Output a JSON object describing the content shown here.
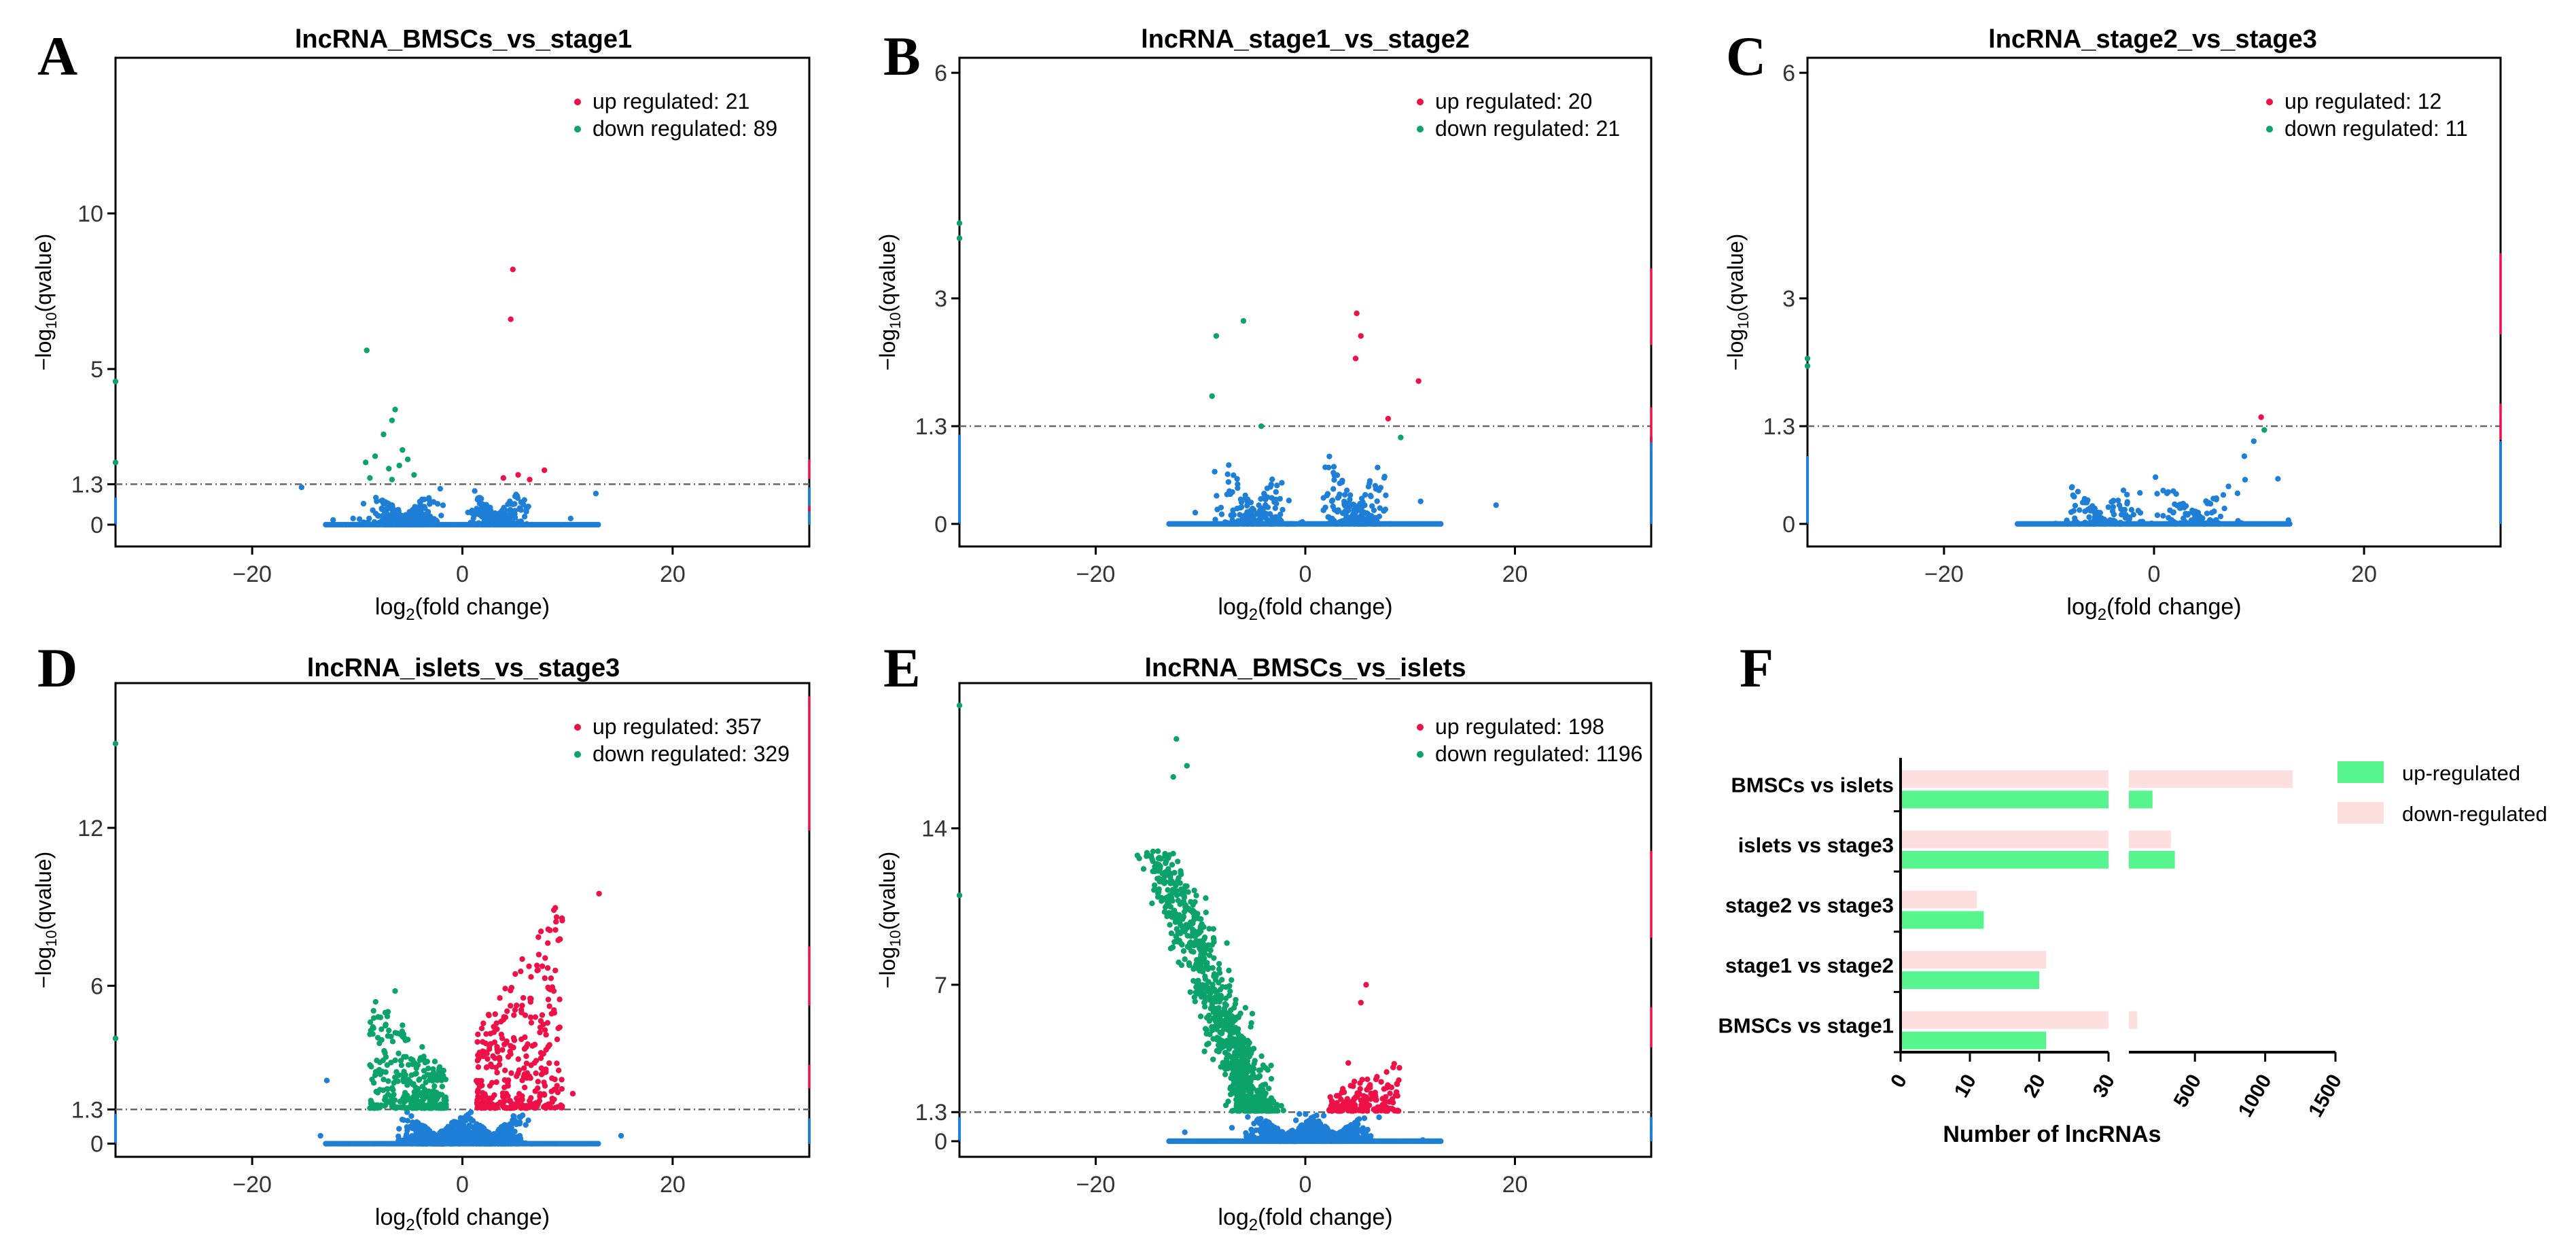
{
  "colors": {
    "up": "#ee1147",
    "down": "#0ca36a",
    "ns": "#1f7fd6",
    "threshold_line": "#666666",
    "axis": "#000000",
    "bar_up": "#56f58e",
    "bar_down": "#fddfe0"
  },
  "chart_data": [
    {
      "panel": "A",
      "type": "scatter",
      "title": "lncRNA_BMSCs_vs_stage1",
      "xlabel_base": "log",
      "xlabel_sub": "2",
      "xlabel_rest": "(fold change)",
      "ylabel_pre": "−log",
      "ylabel_sub": "10",
      "ylabel_rest": "(qvalue)",
      "xlim": [
        -33,
        33
      ],
      "ylim": [
        -0.7,
        15
      ],
      "xticks": [
        -20,
        0,
        20
      ],
      "yticks": [
        0,
        1.3,
        5,
        10
      ],
      "threshold": 1.3,
      "legend": {
        "up_label": "up regulated: 21",
        "down_label": "down regulated: 89"
      },
      "up_points": [
        [
          4.8,
          8.2
        ],
        [
          4.6,
          6.6
        ],
        [
          7.8,
          1.75
        ],
        [
          5.3,
          1.6
        ],
        [
          3.9,
          1.5
        ],
        [
          6.4,
          1.45
        ]
      ],
      "down_points": [
        [
          -9.1,
          5.6
        ],
        [
          -6.4,
          3.7
        ],
        [
          -6.7,
          3.35
        ],
        [
          -7.5,
          2.9
        ],
        [
          -5.7,
          2.4
        ],
        [
          -8.3,
          2.2
        ],
        [
          -5.2,
          2.1
        ],
        [
          -9.2,
          2.0
        ],
        [
          -6.0,
          1.9
        ],
        [
          -7.0,
          1.8
        ],
        [
          -4.6,
          1.6
        ],
        [
          -8.8,
          1.5
        ],
        [
          -6.7,
          1.45
        ],
        [
          -33,
          2.0
        ],
        [
          -33,
          4.6
        ]
      ],
      "ns_extra": [
        [
          -15.3,
          1.2
        ],
        [
          -12.3,
          0.15
        ],
        [
          -10.4,
          0.2
        ],
        [
          10.3,
          0.2
        ],
        [
          12.7,
          1.0
        ]
      ],
      "ns_clusters": [
        {
          "cx": -5.5,
          "spread": 2.7,
          "ymax": 1.2,
          "n": 380
        },
        {
          "cx": 3.3,
          "spread": 2.2,
          "ymax": 1.2,
          "n": 320
        }
      ],
      "edge_up": [
        [
          33,
          2.1
        ],
        [
          33,
          0.6
        ]
      ],
      "edge_ns": true
    },
    {
      "panel": "B",
      "type": "scatter",
      "title": "lncRNA_stage1_vs_stage2",
      "xlabel_base": "log",
      "xlabel_sub": "2",
      "xlabel_rest": "(fold change)",
      "ylabel_pre": "−log",
      "ylabel_sub": "10",
      "ylabel_rest": "(qvalue)",
      "xlim": [
        -33,
        33
      ],
      "ylim": [
        -0.3,
        6.2
      ],
      "xticks": [
        -20,
        0,
        20
      ],
      "yticks": [
        0,
        1.3,
        3,
        6
      ],
      "threshold": 1.3,
      "legend": {
        "up_label": "up regulated: 20",
        "down_label": "down regulated: 21"
      },
      "up_points": [
        [
          4.9,
          2.8
        ],
        [
          5.3,
          2.5
        ],
        [
          4.8,
          2.2
        ],
        [
          10.8,
          1.9
        ],
        [
          7.9,
          1.4
        ]
      ],
      "down_points": [
        [
          -8.5,
          2.5
        ],
        [
          -5.9,
          2.7
        ],
        [
          -8.9,
          1.7
        ],
        [
          -4.2,
          1.3
        ],
        [
          9.1,
          1.15
        ],
        [
          -33,
          4.0
        ],
        [
          -33,
          3.8
        ]
      ],
      "ns_extra": [
        [
          -10.5,
          0.15
        ],
        [
          18.2,
          0.25
        ],
        [
          11.0,
          0.3
        ]
      ],
      "ns_clusters": [
        {
          "cx": -4.8,
          "spread": 2.8,
          "ymax": 0.9,
          "n": 170
        },
        {
          "cx": 4.8,
          "spread": 2.8,
          "ymax": 1.05,
          "n": 170
        }
      ],
      "edge_up": [
        [
          33,
          3.4
        ],
        [
          33,
          1.55
        ]
      ],
      "edge_ns": true
    },
    {
      "panel": "C",
      "type": "scatter",
      "title": "lncRNA_stage2_vs_stage3",
      "xlabel_base": "log",
      "xlabel_sub": "2",
      "xlabel_rest": "(fold change)",
      "ylabel_pre": "−log",
      "ylabel_sub": "10",
      "ylabel_rest": "(qvalue)",
      "xlim": [
        -33,
        33
      ],
      "ylim": [
        -0.3,
        6.2
      ],
      "xticks": [
        -20,
        0,
        20
      ],
      "yticks": [
        0,
        1.3,
        3,
        6
      ],
      "threshold": 1.3,
      "legend": {
        "up_label": "up regulated: 12",
        "down_label": "down regulated: 11"
      },
      "up_points": [
        [
          10.2,
          1.42
        ]
      ],
      "down_points": [
        [
          10.5,
          1.25
        ],
        [
          -33,
          2.2
        ],
        [
          -33,
          2.1
        ]
      ],
      "ns_extra": [
        [
          12.8,
          0.05
        ],
        [
          11.8,
          0.6
        ],
        [
          9.5,
          1.1
        ],
        [
          8.6,
          0.9
        ]
      ],
      "ns_clusters": [
        {
          "cx": -5.0,
          "spread": 3.3,
          "ymax": 0.65,
          "n": 120
        },
        {
          "cx": 4.0,
          "spread": 3.5,
          "ymax": 0.7,
          "n": 110
        }
      ],
      "edge_up": [
        [
          33,
          3.6
        ],
        [
          33,
          1.6
        ]
      ],
      "edge_ns": true
    },
    {
      "panel": "D",
      "type": "scatter",
      "title": "lncRNA_islets_vs_stage3",
      "xlabel_base": "log",
      "xlabel_sub": "2",
      "xlabel_rest": "(fold change)",
      "ylabel_pre": "−log",
      "ylabel_sub": "10",
      "ylabel_rest": "(qvalue)",
      "xlim": [
        -33,
        33
      ],
      "ylim": [
        -0.5,
        17.5
      ],
      "xticks": [
        -20,
        0,
        20
      ],
      "yticks": [
        0,
        1.3,
        6,
        12
      ],
      "threshold": 1.3,
      "legend": {
        "up_label": "up regulated: 357",
        "down_label": "down regulated: 329"
      },
      "up_points": [
        [
          13.0,
          9.5
        ],
        [
          10.5,
          1.9
        ],
        [
          9.0,
          2.2
        ]
      ],
      "down_points": [
        [
          -6.4,
          5.8
        ],
        [
          -5.7,
          4.5
        ],
        [
          -7.0,
          4.3
        ],
        [
          -33,
          15.2
        ],
        [
          -33,
          4.0
        ]
      ],
      "ns_extra": [
        [
          -12.9,
          2.4
        ],
        [
          -13.5,
          0.3
        ],
        [
          15.1,
          0.3
        ]
      ],
      "ns_clusters": [
        {
          "cx": -2.5,
          "spread": 2.6,
          "ymax": 1.25,
          "n": 650
        },
        {
          "cx": 2.8,
          "spread": 2.4,
          "ymax": 1.25,
          "n": 600
        }
      ],
      "up_clusters": [
        {
          "x0": 1.3,
          "x1": 9.5,
          "ymin": 1.35,
          "ymax": 9.5,
          "n": 330
        }
      ],
      "down_clusters": [
        {
          "x0": -8.8,
          "x1": -1.5,
          "ymin": 1.35,
          "ymax": 5.8,
          "n": 300
        }
      ],
      "edge_up": [
        [
          33,
          17.0
        ],
        [
          33,
          7.5
        ],
        [
          33,
          3.0
        ]
      ],
      "edge_ns": true
    },
    {
      "panel": "E",
      "type": "scatter",
      "title": "lncRNA_BMSCs_vs_islets",
      "xlabel_base": "log",
      "xlabel_sub": "2",
      "xlabel_rest": "(fold change)",
      "ylabel_pre": "−log",
      "ylabel_sub": "10",
      "ylabel_rest": "(qvalue)",
      "xlim": [
        -33,
        33
      ],
      "ylim": [
        -0.7,
        20.5
      ],
      "xticks": [
        -20,
        0,
        20
      ],
      "yticks": [
        0,
        1.3,
        7,
        14
      ],
      "threshold": 1.3,
      "legend": {
        "up_label": "up regulated: 198",
        "down_label": "down regulated: 1196"
      },
      "up_points": [
        [
          5.8,
          7.0
        ],
        [
          5.3,
          6.2
        ],
        [
          4.1,
          3.5
        ],
        [
          8.7,
          2.2
        ]
      ],
      "down_points": [
        [
          -12.3,
          18.0
        ],
        [
          -12.6,
          16.3
        ],
        [
          -11.3,
          16.8
        ],
        [
          -33,
          19.5
        ],
        [
          -33,
          11.0
        ]
      ],
      "ns_extra": [
        [
          -11.5,
          0.4
        ],
        [
          11.2,
          0.05
        ],
        [
          -7.0,
          0.6
        ]
      ],
      "ns_clusters": [
        {
          "cx": -1.8,
          "spread": 2.8,
          "ymax": 1.25,
          "n": 650
        },
        {
          "cx": 3.0,
          "spread": 2.7,
          "ymax": 1.25,
          "n": 480
        }
      ],
      "up_clusters": [
        {
          "x0": 2.2,
          "x1": 9.0,
          "ymin": 1.35,
          "ymax": 3.6,
          "n": 170
        }
      ],
      "down_clusters": [
        {
          "x0": -12.5,
          "x1": -3.0,
          "ymin": 1.35,
          "ymax": 13.0,
          "n": 900,
          "lean": true
        }
      ],
      "edge_up": [
        [
          33,
          13.0
        ],
        [
          33,
          6.0
        ]
      ],
      "edge_ns": true
    },
    {
      "panel": "F",
      "type": "bar",
      "orientation": "horizontal",
      "xlabel": "Number of lncRNAs",
      "categories": [
        "BMSCs vs islets",
        "islets vs stage3",
        "stage2 vs stage3",
        "stage1 vs stage2",
        "BMSCs vs stage1"
      ],
      "series": [
        {
          "name": "up-regulated",
          "values": [
            198,
            357,
            12,
            20,
            21
          ]
        },
        {
          "name": "down-regulated",
          "values": [
            1196,
            329,
            11,
            21,
            89
          ]
        }
      ],
      "axis_break": {
        "segment1": [
          0,
          30
        ],
        "segment2": [
          30,
          1500
        ]
      },
      "ticks_segment1": [
        "0",
        "10",
        "20",
        "30"
      ],
      "ticks_segment2": [
        "500",
        "1000",
        "1500"
      ],
      "legend": [
        "up-regulated",
        "down-regulated"
      ]
    }
  ],
  "panel_letters": [
    "A",
    "B",
    "C",
    "D",
    "E",
    "F"
  ]
}
